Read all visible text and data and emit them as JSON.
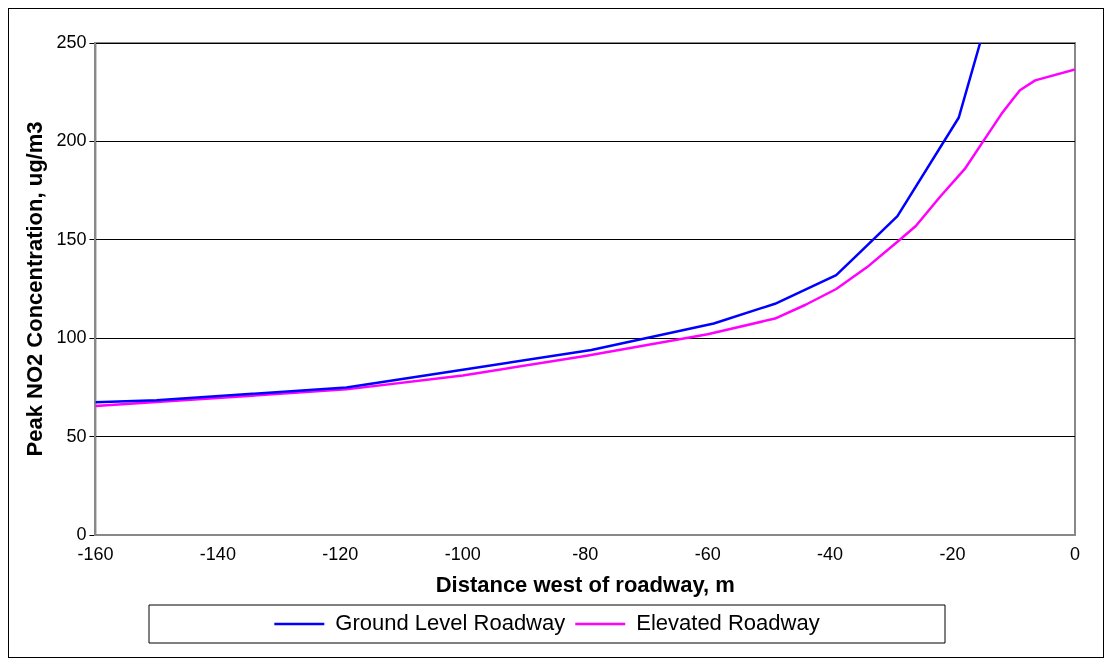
{
  "chart_data": {
    "type": "line",
    "xlabel": "Distance west of roadway, m",
    "ylabel": "Peak NO2 Concentration, ug/m3",
    "xlim": [
      -160,
      0
    ],
    "xticks": [
      -160,
      -140,
      -120,
      -100,
      -80,
      -60,
      -40,
      -20,
      0
    ],
    "ylim": [
      0,
      250
    ],
    "yticks": [
      0,
      50,
      100,
      150,
      200,
      250
    ],
    "grid": "y",
    "legend": "bottom",
    "marker": "none",
    "line_style": "solid",
    "series": [
      {
        "name": "Ground Level Roadway",
        "color": "#0000ff",
        "x": [
          -160,
          -150,
          -119,
          -100,
          -79,
          -59,
          -49,
          -39,
          -29,
          -19,
          -15.5
        ],
        "values": [
          67.5,
          68.5,
          75,
          84,
          94,
          107.5,
          117.5,
          132,
          162,
          212,
          250
        ]
      },
      {
        "name": "Elevated Roadway",
        "color": "#ff00ff",
        "x": [
          -160,
          -119,
          -100,
          -80,
          -60,
          -49,
          -44,
          -39,
          -34,
          -29,
          -26,
          -22,
          -18,
          -15,
          -12,
          -10,
          -9,
          -6.5,
          0
        ],
        "values": [
          65.5,
          74,
          81,
          91,
          102,
          110,
          117,
          125,
          136,
          149,
          157,
          172,
          186,
          200,
          214,
          222,
          226,
          231,
          236.5
        ]
      }
    ]
  }
}
